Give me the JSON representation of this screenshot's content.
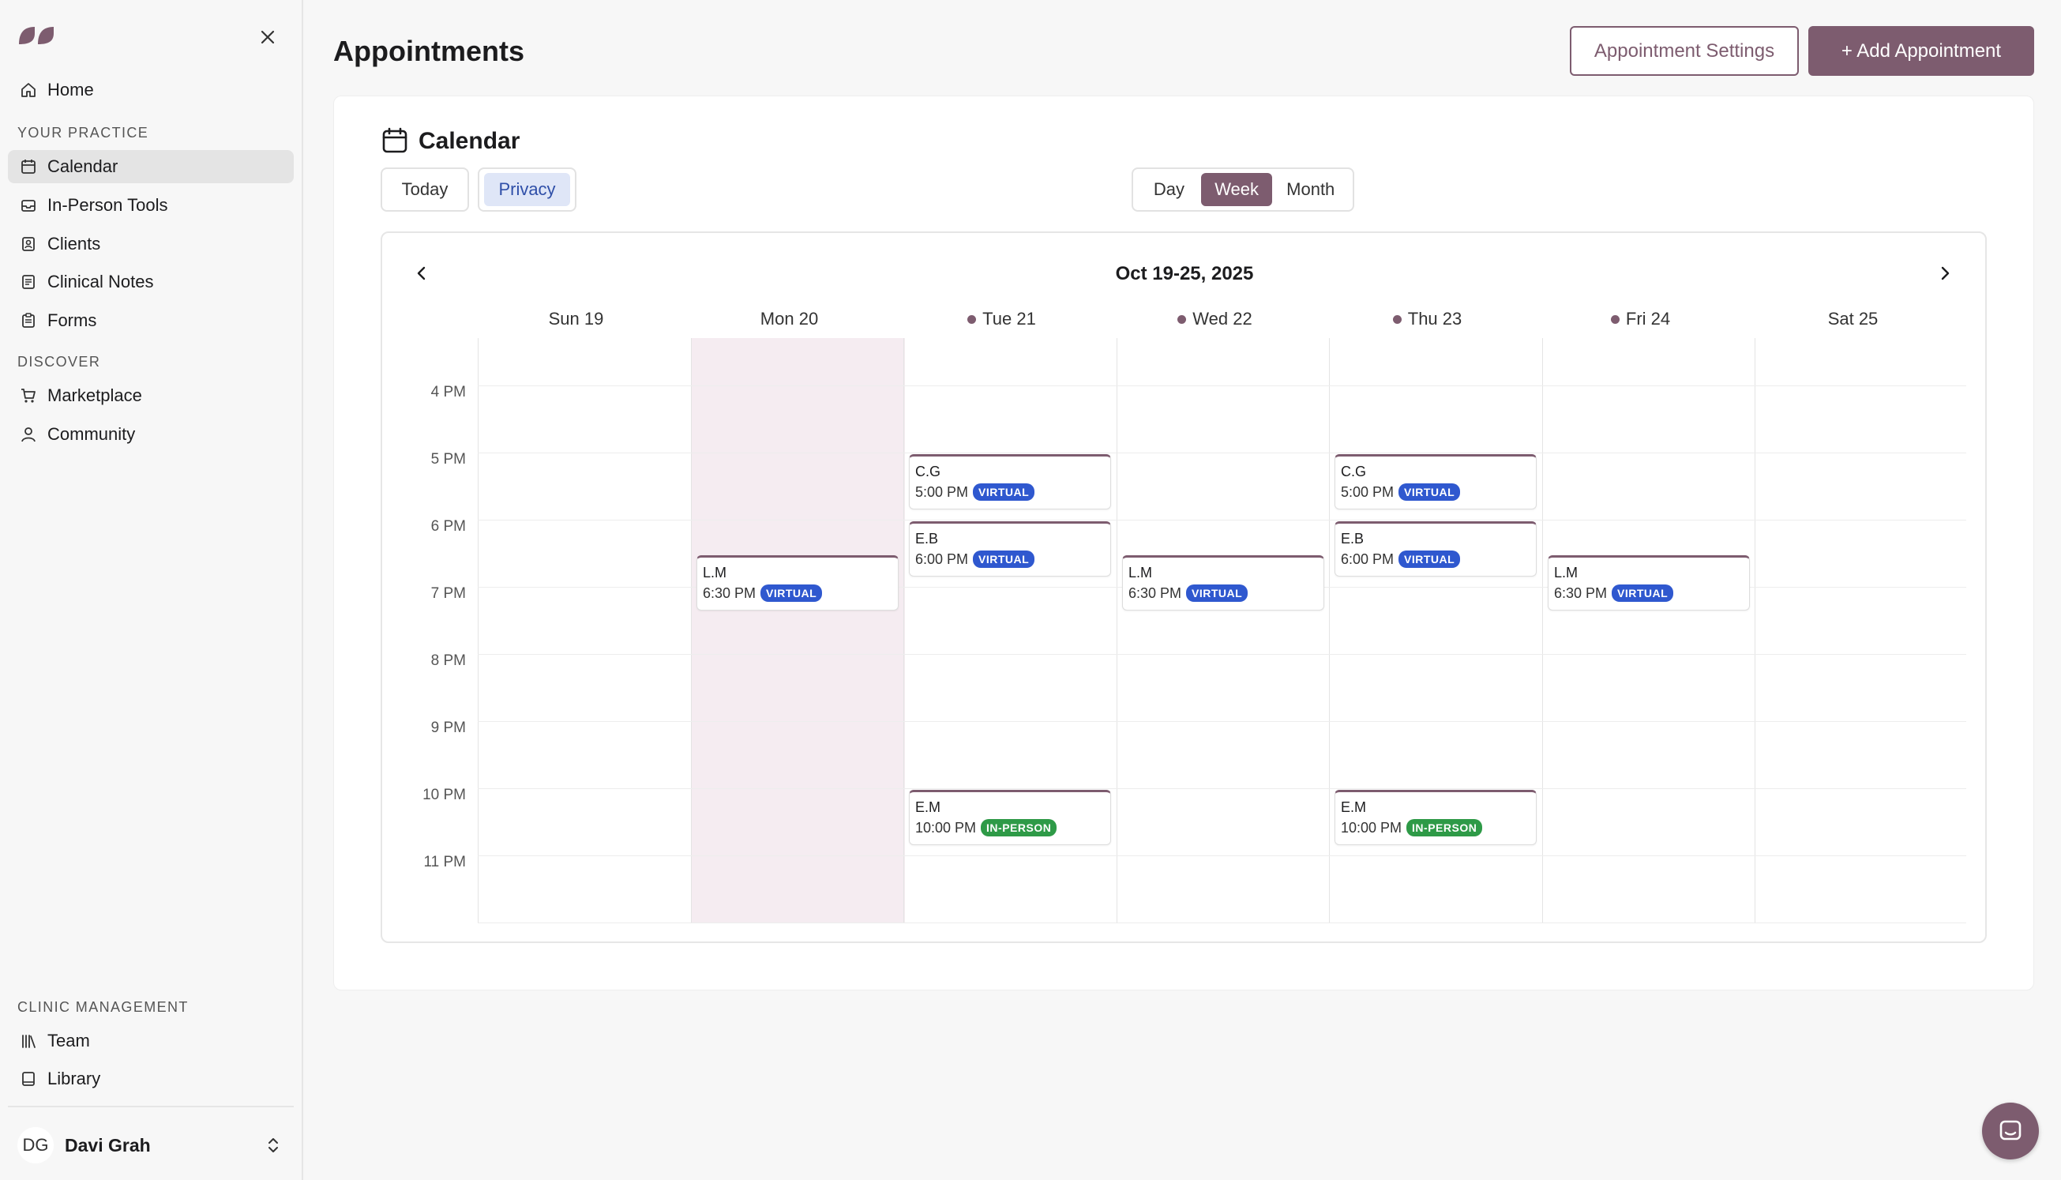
{
  "sidebar": {
    "nav_top": [
      {
        "label": "Home",
        "icon": "home-icon"
      }
    ],
    "sections": [
      {
        "title": "YOUR PRACTICE",
        "items": [
          {
            "label": "Calendar",
            "icon": "calendar-icon",
            "active": true
          },
          {
            "label": "In-Person Tools",
            "icon": "tray-icon"
          },
          {
            "label": "Clients",
            "icon": "contact-book-icon"
          },
          {
            "label": "Clinical Notes",
            "icon": "notes-icon"
          },
          {
            "label": "Forms",
            "icon": "clipboard-icon"
          }
        ]
      },
      {
        "title": "DISCOVER",
        "items": [
          {
            "label": "Marketplace",
            "icon": "cart-icon"
          },
          {
            "label": "Community",
            "icon": "user-icon"
          }
        ]
      },
      {
        "title": "CLINIC MANAGEMENT",
        "items": [
          {
            "label": "Team",
            "icon": "books-icon"
          },
          {
            "label": "Library",
            "icon": "book-icon"
          }
        ]
      }
    ],
    "user": {
      "initials": "DG",
      "name": "Davi Grah"
    }
  },
  "header": {
    "title": "Appointments",
    "settings_label": "Appointment Settings",
    "add_label": "+ Add Appointment"
  },
  "calendar": {
    "title": "Calendar",
    "today_label": "Today",
    "privacy_label": "Privacy",
    "views": [
      {
        "label": "Day"
      },
      {
        "label": "Week",
        "active": true
      },
      {
        "label": "Month"
      }
    ],
    "range": "Oct 19-25, 2025",
    "days": [
      {
        "label": "Sun 19",
        "dot": false
      },
      {
        "label": "Mon 20",
        "dot": false
      },
      {
        "label": "Tue 21",
        "dot": true
      },
      {
        "label": "Wed 22",
        "dot": true
      },
      {
        "label": "Thu 23",
        "dot": true
      },
      {
        "label": "Fri 24",
        "dot": true
      },
      {
        "label": "Sat 25",
        "dot": false
      }
    ],
    "hours": [
      "4 PM",
      "5 PM",
      "6 PM",
      "7 PM",
      "8 PM",
      "9 PM",
      "10 PM",
      "11 PM"
    ],
    "events": [
      {
        "day": 2,
        "start": 17.0,
        "name": "C.G",
        "time": "5:00 PM",
        "type": "VIRTUAL"
      },
      {
        "day": 4,
        "start": 17.0,
        "name": "C.G",
        "time": "5:00 PM",
        "type": "VIRTUAL"
      },
      {
        "day": 2,
        "start": 18.0,
        "name": "E.B",
        "time": "6:00 PM",
        "type": "VIRTUAL"
      },
      {
        "day": 4,
        "start": 18.0,
        "name": "E.B",
        "time": "6:00 PM",
        "type": "VIRTUAL"
      },
      {
        "day": 1,
        "start": 18.5,
        "name": "L.M",
        "time": "6:30 PM",
        "type": "VIRTUAL"
      },
      {
        "day": 3,
        "start": 18.5,
        "name": "L.M",
        "time": "6:30 PM",
        "type": "VIRTUAL"
      },
      {
        "day": 5,
        "start": 18.5,
        "name": "L.M",
        "time": "6:30 PM",
        "type": "VIRTUAL"
      },
      {
        "day": 2,
        "start": 22.0,
        "name": "E.M",
        "time": "10:00 PM",
        "type": "IN-PERSON"
      },
      {
        "day": 4,
        "start": 22.0,
        "name": "E.M",
        "time": "10:00 PM",
        "type": "IN-PERSON"
      }
    ]
  },
  "colors": {
    "brand": "#7d5c6f",
    "virtual": "#2f58cf",
    "in_person": "#2e9a47",
    "today_bg": "#f5ecf1"
  }
}
